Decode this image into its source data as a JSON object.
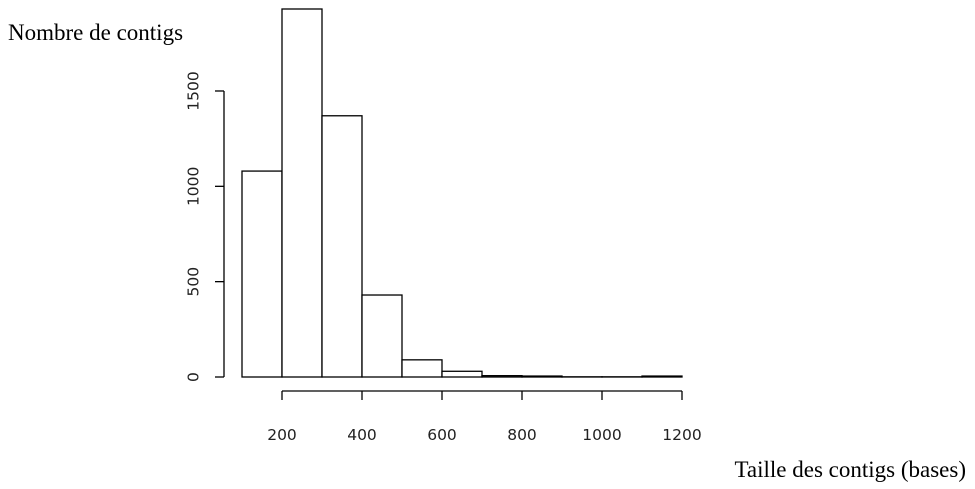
{
  "chart_data": {
    "type": "bar",
    "title": "",
    "xlabel": "Taille des contigs (bases)",
    "ylabel": "Nombre de contigs",
    "bins": [
      {
        "start": 100,
        "end": 200,
        "count": 1080
      },
      {
        "start": 200,
        "end": 300,
        "count": 1930
      },
      {
        "start": 300,
        "end": 400,
        "count": 1370
      },
      {
        "start": 400,
        "end": 500,
        "count": 430
      },
      {
        "start": 500,
        "end": 600,
        "count": 90
      },
      {
        "start": 600,
        "end": 700,
        "count": 30
      },
      {
        "start": 700,
        "end": 800,
        "count": 7
      },
      {
        "start": 800,
        "end": 900,
        "count": 5
      },
      {
        "start": 900,
        "end": 1000,
        "count": 1
      },
      {
        "start": 1000,
        "end": 1100,
        "count": 1
      },
      {
        "start": 1100,
        "end": 1200,
        "count": 5
      }
    ],
    "x_ticks": [
      200,
      400,
      600,
      800,
      1000,
      1200
    ],
    "x_tick_labels": [
      "200",
      "400",
      "600",
      "800",
      "1000",
      "1200"
    ],
    "y_ticks": [
      0,
      500,
      1000,
      1500
    ],
    "y_tick_labels": [
      "0",
      "500",
      "1000",
      "1500"
    ],
    "xlim": [
      100,
      1200
    ],
    "ylim": [
      0,
      1930
    ],
    "grid": false,
    "legend": "none"
  }
}
